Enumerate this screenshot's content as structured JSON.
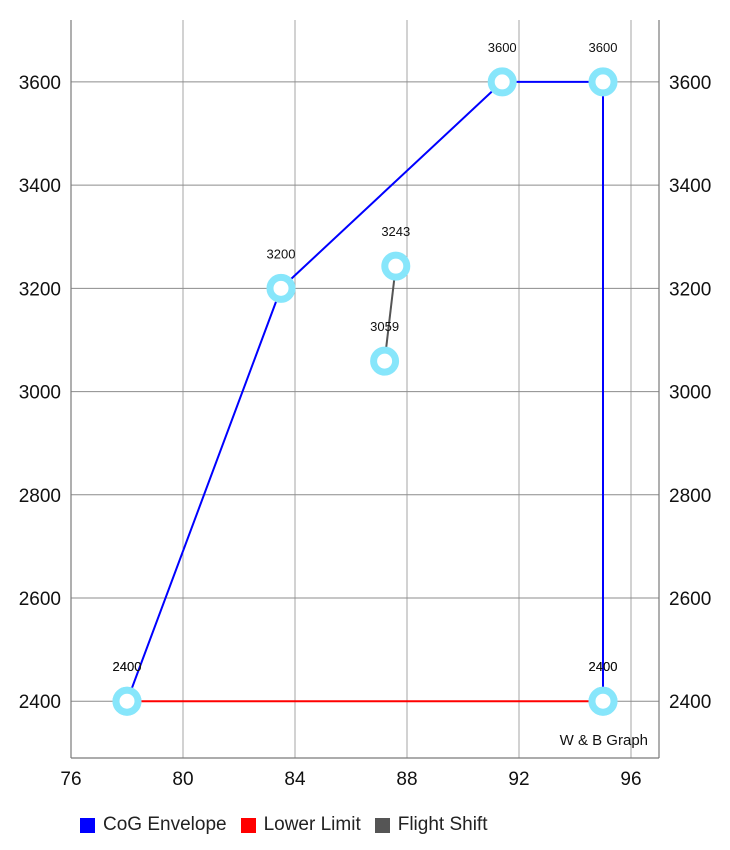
{
  "chart_data": {
    "type": "line",
    "description": "W & B Graph",
    "xlim": [
      76,
      97
    ],
    "ylim": [
      2290,
      3720
    ],
    "x_ticks": [
      76,
      80,
      84,
      88,
      92,
      96
    ],
    "y_ticks": [
      2400,
      2600,
      2800,
      3000,
      3200,
      3400,
      3600
    ],
    "x_tick_labels": [
      "76",
      "80",
      "84",
      "88",
      "92",
      "96"
    ],
    "y_tick_labels": [
      "2400",
      "2600",
      "2800",
      "3000",
      "3200",
      "3400",
      "3600"
    ],
    "grid": true,
    "legend_position": "bottom-left",
    "series": [
      {
        "name": "CoG Envelope",
        "color": "#0000ff",
        "points": [
          {
            "x": 78.0,
            "y": 2400,
            "label": "2400"
          },
          {
            "x": 83.5,
            "y": 3200,
            "label": "3200"
          },
          {
            "x": 91.4,
            "y": 3600,
            "label": "3600"
          },
          {
            "x": 95.0,
            "y": 3600,
            "label": "3600"
          },
          {
            "x": 95.0,
            "y": 2400,
            "label": "2400"
          }
        ]
      },
      {
        "name": "Lower Limit",
        "color": "#ff0000",
        "points": [
          {
            "x": 78.0,
            "y": 2400,
            "label": "2400"
          },
          {
            "x": 95.0,
            "y": 2400,
            "label": "2400"
          }
        ]
      },
      {
        "name": "Flight Shift",
        "color": "#555555",
        "points": [
          {
            "x": 87.6,
            "y": 3243,
            "label": "3243"
          },
          {
            "x": 87.2,
            "y": 3059,
            "label": "3059"
          }
        ]
      }
    ],
    "marker_color": "#87e6fb"
  }
}
